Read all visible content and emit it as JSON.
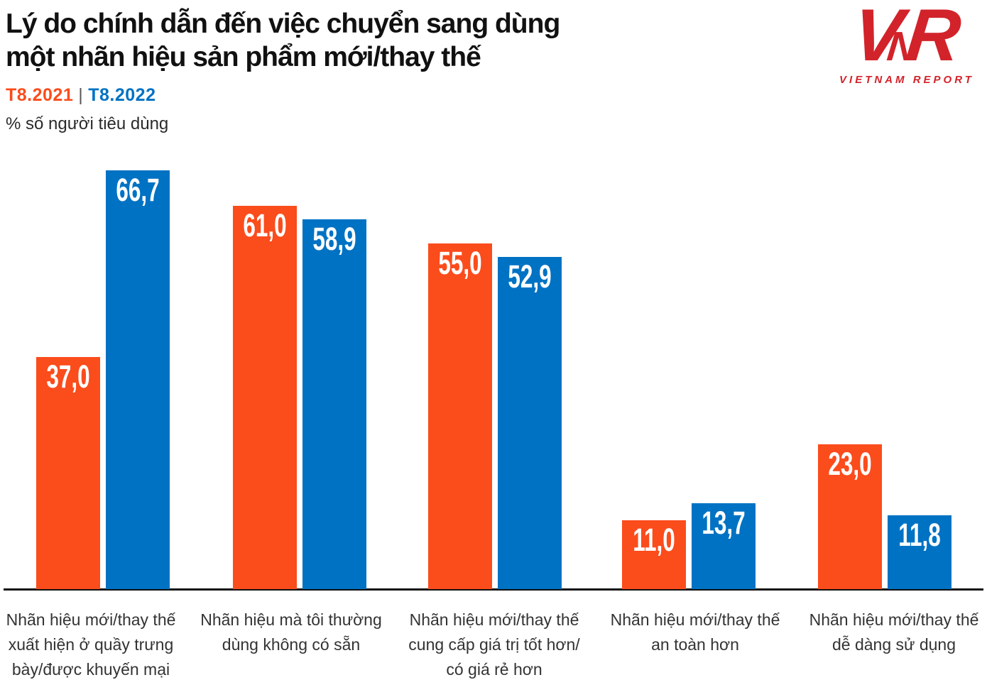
{
  "header": {
    "title_line1": "Lý do chính dẫn đến việc chuyển sang dùng",
    "title_line2": "một nhãn hiệu sản phẩm mới/thay thế",
    "legend": {
      "series1": "T8.2021",
      "separator": "|",
      "series2": "T8.2022"
    },
    "subtitle": "% số người tiêu dùng"
  },
  "logo": {
    "letter_v": "V",
    "letter_n": "N",
    "letter_r": "R",
    "caption": "VIETNAM REPORT",
    "color": "#D2232A"
  },
  "colors": {
    "orange": "#FB4C1C",
    "blue": "#0072C3",
    "axis": "#111111",
    "title_text": "#111111",
    "category_text": "#333333",
    "value_text": "#FFFFFF"
  },
  "chart_data": {
    "type": "bar",
    "title": "Lý do chính dẫn đến việc chuyển sang dùng một nhãn hiệu sản phẩm mới/thay thế",
    "unit_label": "% số người tiêu dùng",
    "decimal_separator": ",",
    "grid": false,
    "legend_position": "top-left",
    "ylim": [
      0,
      75
    ],
    "categories": [
      "Nhãn hiệu mới/thay thế xuất hiện ở quầy trưng bày/được khuyến mại",
      "Nhãn hiệu mà tôi thường dùng không có sẵn",
      "Nhãn hiệu mới/thay thế cung cấp giá trị tốt hơn/ có giá rẻ hơn",
      "Nhãn hiệu mới/thay thế an toàn hơn",
      "Nhãn hiệu mới/thay thế dễ dàng sử dụng"
    ],
    "category_lines": [
      [
        "Nhãn hiệu mới/thay thế",
        "xuất hiện ở quầy trưng",
        "bày/được khuyến mại"
      ],
      [
        "Nhãn hiệu mà tôi thường",
        "dùng không có sẵn"
      ],
      [
        "Nhãn hiệu mới/thay thế",
        "cung cấp giá trị tốt hơn/",
        "có giá rẻ hơn"
      ],
      [
        "Nhãn hiệu mới/thay thế",
        "an toàn hơn"
      ],
      [
        "Nhãn hiệu mới/thay thế",
        "dễ dàng sử dụng"
      ]
    ],
    "series": [
      {
        "name": "T8.2021",
        "color": "#FB4C1C",
        "values": [
          37.0,
          61.0,
          55.0,
          11.0,
          23.0
        ],
        "labels": [
          "37,0",
          "61,0",
          "55,0",
          "11,0",
          "23,0"
        ]
      },
      {
        "name": "T8.2022",
        "color": "#0072C3",
        "values": [
          66.7,
          58.9,
          52.9,
          13.7,
          11.8
        ],
        "labels": [
          "66,7",
          "58,9",
          "52,9",
          "13,7",
          "11,8"
        ]
      }
    ]
  }
}
